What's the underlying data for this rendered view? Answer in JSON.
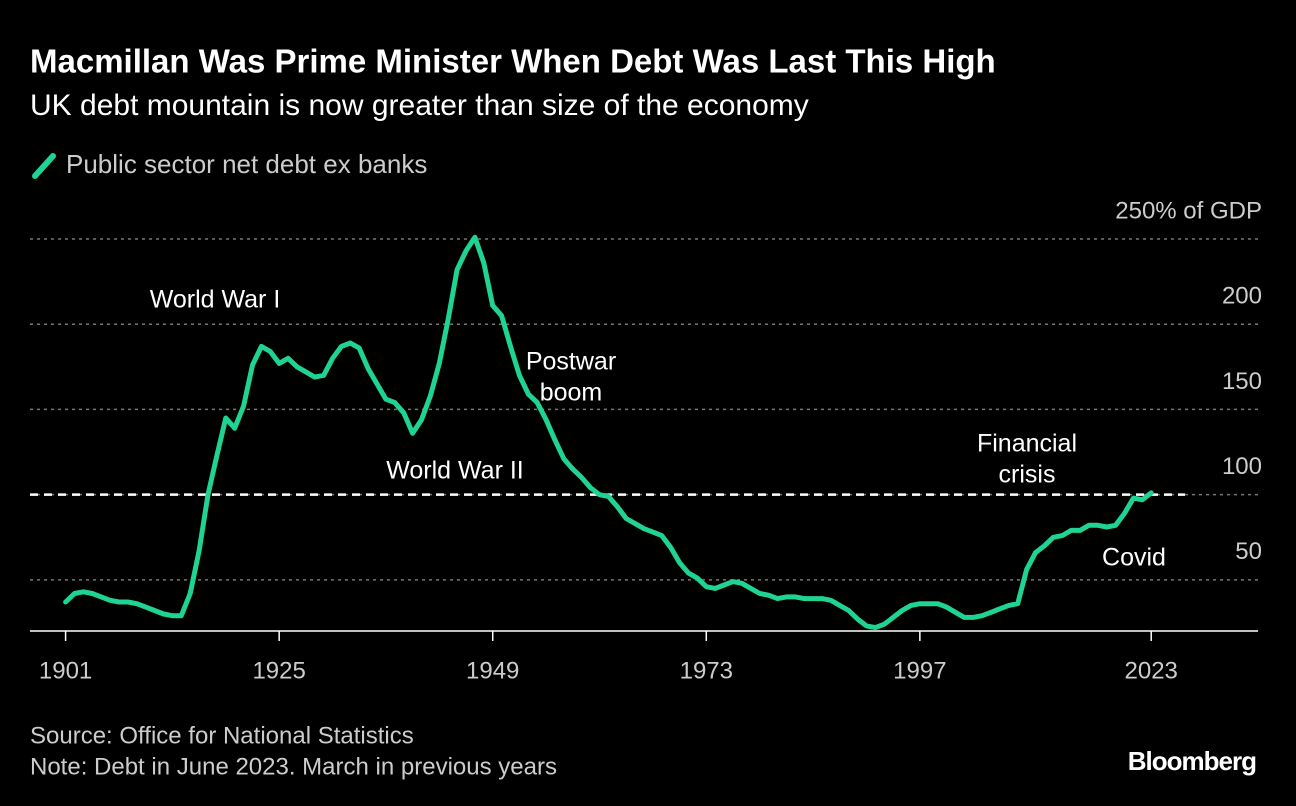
{
  "chart_data": {
    "type": "line",
    "title": "Macmillan Was Prime Minister When Debt Was Last This High",
    "subtitle": "UK debt mountain is now greater than size of the economy",
    "source": "Source: Office for National Statistics",
    "note": "Note: Debt in June 2023. March in previous years",
    "brand": "Bloomberg",
    "x": [
      1901,
      1902,
      1903,
      1904,
      1905,
      1906,
      1907,
      1908,
      1909,
      1910,
      1911,
      1912,
      1913,
      1914,
      1915,
      1916,
      1917,
      1918,
      1919,
      1920,
      1921,
      1922,
      1923,
      1924,
      1925,
      1926,
      1927,
      1928,
      1929,
      1930,
      1931,
      1932,
      1933,
      1934,
      1935,
      1936,
      1937,
      1938,
      1939,
      1940,
      1941,
      1942,
      1943,
      1944,
      1945,
      1946,
      1947,
      1948,
      1949,
      1950,
      1951,
      1952,
      1953,
      1954,
      1955,
      1956,
      1957,
      1958,
      1959,
      1960,
      1961,
      1962,
      1963,
      1964,
      1965,
      1966,
      1967,
      1968,
      1969,
      1970,
      1971,
      1972,
      1973,
      1974,
      1975,
      1976,
      1977,
      1978,
      1979,
      1980,
      1981,
      1982,
      1983,
      1984,
      1985,
      1986,
      1987,
      1988,
      1989,
      1990,
      1991,
      1992,
      1993,
      1994,
      1995,
      1996,
      1997,
      1998,
      1999,
      2000,
      2001,
      2002,
      2003,
      2004,
      2005,
      2006,
      2007,
      2008,
      2009,
      2010,
      2011,
      2012,
      2013,
      2014,
      2015,
      2016,
      2017,
      2018,
      2019,
      2020,
      2021,
      2022,
      2023
    ],
    "series": [
      {
        "name": "Public sector net debt ex banks",
        "color": "#1fd393",
        "values": [
          37,
          42,
          43,
          42,
          40,
          38,
          37,
          37,
          36,
          34,
          32,
          30,
          29,
          29,
          42,
          67,
          100,
          123,
          145,
          139,
          152,
          176,
          187,
          184,
          177,
          180,
          175,
          172,
          169,
          170,
          180,
          187,
          189,
          186,
          174,
          165,
          156,
          154,
          148,
          136,
          144,
          158,
          177,
          203,
          232,
          243,
          251,
          236,
          211,
          205,
          187,
          170,
          159,
          154,
          144,
          132,
          121,
          115,
          110,
          104,
          100,
          99,
          93,
          86,
          83,
          80,
          78,
          76,
          69,
          60,
          54,
          51,
          46,
          45,
          47,
          49,
          48,
          45,
          42,
          41,
          39,
          40,
          40,
          39,
          39,
          39,
          38,
          35,
          32,
          27,
          23,
          22,
          24,
          28,
          32,
          35,
          36,
          36,
          36,
          34,
          31,
          28,
          28,
          29,
          31,
          33,
          35,
          36,
          56,
          66,
          70,
          75,
          76,
          79,
          79,
          82,
          82,
          81,
          82,
          89,
          98,
          97,
          101
        ]
      }
    ],
    "xlim": [
      1897,
      2035
    ],
    "xticks": [
      1901,
      1925,
      1949,
      1973,
      1997,
      2023
    ],
    "ylim": [
      20,
      250
    ],
    "yticks": [
      50,
      100,
      150,
      200,
      {
        "value": 250,
        "label": "250% of GDP"
      }
    ],
    "reference_line": {
      "value": 100,
      "color": "#ffffff"
    },
    "grid": true,
    "annotations": [
      "World War I",
      "World War II",
      "Postwar boom",
      "Financial crisis",
      "Covid"
    ]
  }
}
